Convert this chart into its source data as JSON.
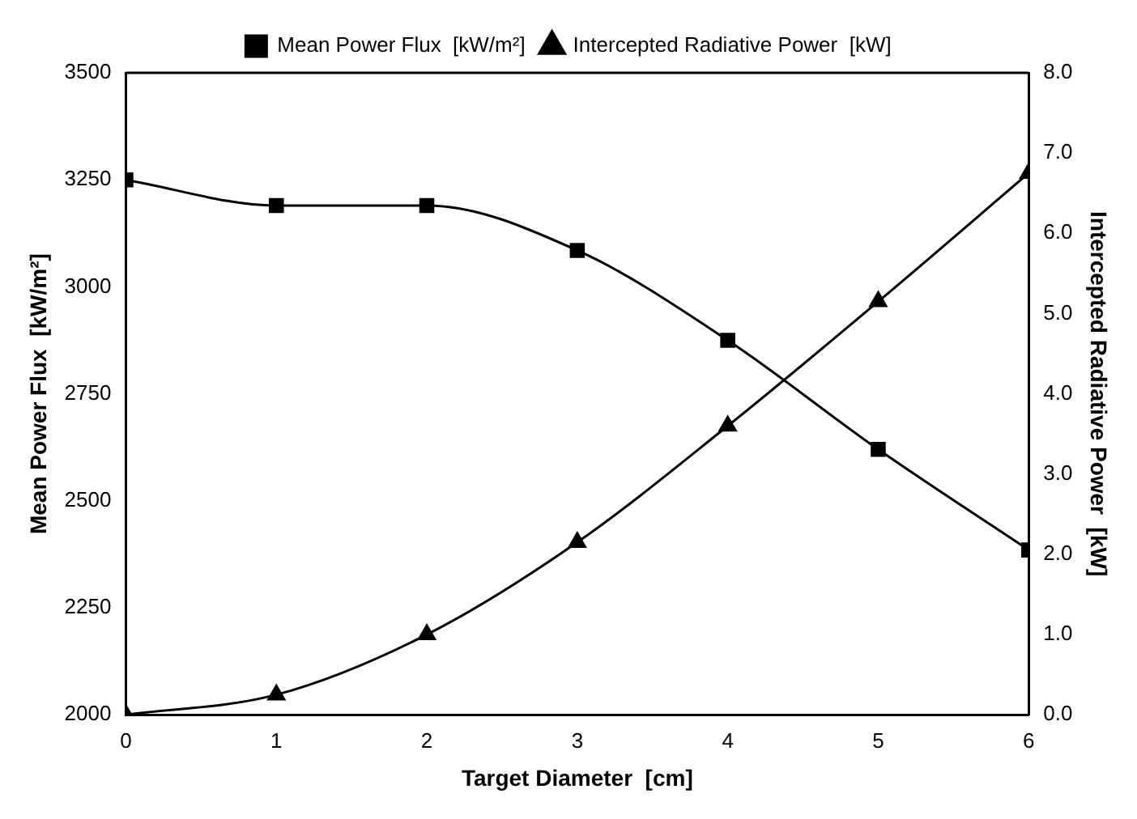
{
  "chart_data": {
    "type": "line",
    "xlabel": "Target Diameter  [cm]",
    "ylabel": "Mean Power Flux  [kW/m²]",
    "y2label": "Intercepted Radiative Power  [kW]",
    "x": [
      0,
      1,
      2,
      3,
      4,
      5,
      6
    ],
    "xlim": [
      0,
      6
    ],
    "xticks": [
      0,
      1,
      2,
      3,
      4,
      5,
      6
    ],
    "ylim": [
      2000,
      3500
    ],
    "yticks": [
      2000,
      2250,
      2500,
      2750,
      3000,
      3250,
      3500
    ],
    "y2lim": [
      0,
      8
    ],
    "y2ticks": [
      {
        "value": 0,
        "label": "0.0"
      },
      {
        "value": 1,
        "label": "1.0"
      },
      {
        "value": 2,
        "label": "2.0"
      },
      {
        "value": 3,
        "label": "3.0"
      },
      {
        "value": 4,
        "label": "4.0"
      },
      {
        "value": 5,
        "label": "5.0"
      },
      {
        "value": 6,
        "label": "6.0"
      },
      {
        "value": 7,
        "label": "7.0"
      },
      {
        "value": 8,
        "label": "8.0"
      }
    ],
    "grid": false,
    "legend": "top",
    "line_style": "solid",
    "series": [
      {
        "name": "Mean Power Flux  [kW/m²]",
        "color": "#000000",
        "marker": "square",
        "values": [
          3250,
          3190,
          3190,
          3085,
          2875,
          2620,
          2385
        ]
      },
      {
        "name": "Intercepted Radiative Power  [kW]",
        "color": "#000000",
        "marker": "triangle",
        "axis": "y2",
        "values": [
          0,
          0.25,
          1.0,
          2.15,
          3.6,
          5.15,
          6.75
        ]
      }
    ]
  }
}
